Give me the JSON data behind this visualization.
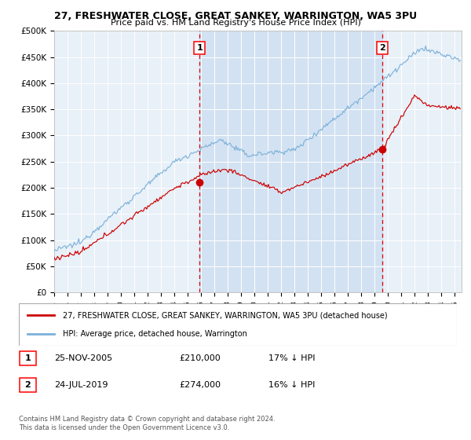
{
  "title": "27, FRESHWATER CLOSE, GREAT SANKEY, WARRINGTON, WA5 3PU",
  "subtitle": "Price paid vs. HM Land Registry's House Price Index (HPI)",
  "ylim": [
    0,
    500000
  ],
  "xlim_start": 1995.0,
  "xlim_end": 2025.5,
  "purchase1_date": 2005.9,
  "purchase1_price": 210000,
  "purchase2_date": 2019.55,
  "purchase2_price": 274000,
  "plot_bg": "#e8f0f8",
  "hpi_color": "#7ab0d8",
  "price_color": "#cc0000",
  "vline_color": "#dd0000",
  "legend1": "27, FRESHWATER CLOSE, GREAT SANKEY, WARRINGTON, WA5 3PU (detached house)",
  "legend2": "HPI: Average price, detached house, Warrington",
  "note1_label": "1",
  "note1_date": "25-NOV-2005",
  "note1_price": "£210,000",
  "note1_pct": "17% ↓ HPI",
  "note2_label": "2",
  "note2_date": "24-JUL-2019",
  "note2_price": "£274,000",
  "note2_pct": "16% ↓ HPI",
  "footnote": "Contains HM Land Registry data © Crown copyright and database right 2024.\nThis data is licensed under the Open Government Licence v3.0."
}
